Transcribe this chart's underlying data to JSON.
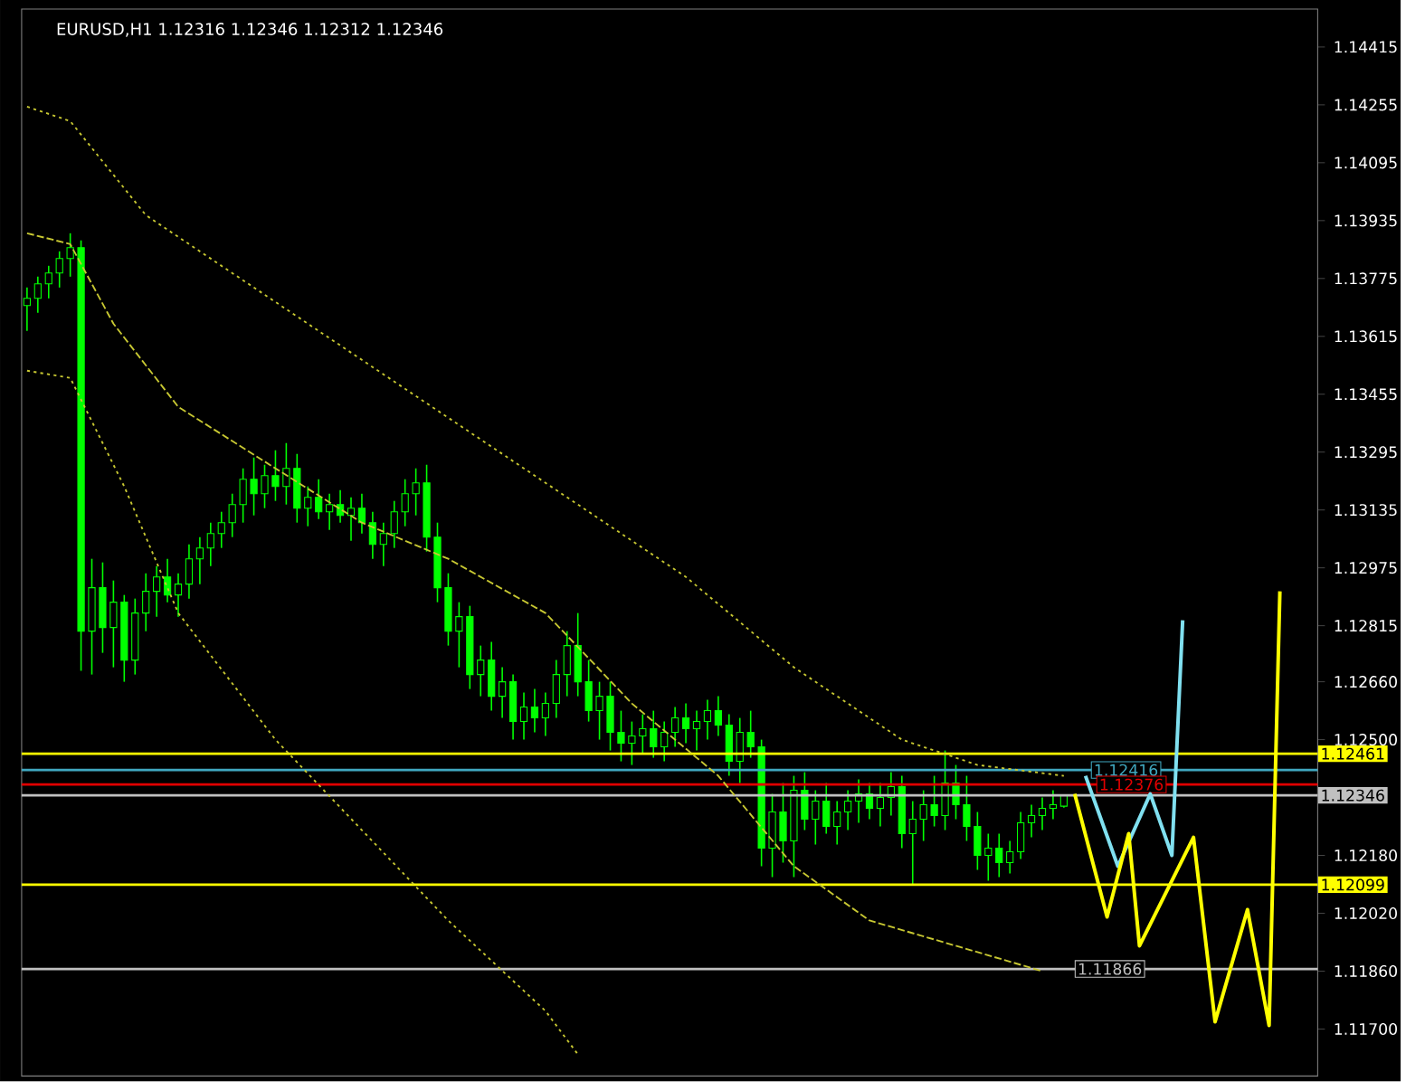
{
  "chart_data": {
    "type": "candlestick",
    "title": "EURUSD,H1 1.12316 1.12346 1.12312 1.12346",
    "categories": [
      null,
      null,
      null,
      null,
      null,
      null,
      null,
      null,
      null,
      null,
      null,
      null,
      null,
      null,
      null,
      null,
      null,
      null,
      null,
      null,
      null,
      null,
      null,
      null,
      null,
      null,
      null,
      null,
      null,
      null,
      null,
      null,
      null,
      null,
      null,
      null,
      null,
      null,
      null,
      null,
      null,
      null,
      null,
      null,
      null,
      null,
      null,
      null,
      null,
      null,
      null,
      null,
      null,
      null,
      null,
      null,
      null,
      null,
      null,
      null,
      null,
      null,
      null,
      null,
      null,
      null,
      null,
      null,
      null,
      null,
      null,
      null,
      null,
      null,
      null,
      null,
      null,
      null,
      null,
      null,
      null,
      null,
      null,
      null,
      null,
      null,
      null,
      null,
      null,
      null,
      null,
      null,
      null,
      null,
      null,
      null,
      null,
      null,
      null,
      null,
      null,
      null,
      null,
      null,
      null,
      null,
      null,
      null,
      null,
      null,
      null,
      null,
      null,
      null,
      null,
      null,
      null,
      null,
      null,
      null
    ],
    "ohlc": [
      [
        1.137,
        1.1375,
        1.1363,
        1.1372
      ],
      [
        1.1372,
        1.1378,
        1.1368,
        1.1376
      ],
      [
        1.1376,
        1.1381,
        1.1372,
        1.1379
      ],
      [
        1.1379,
        1.1385,
        1.1375,
        1.1383
      ],
      [
        1.1383,
        1.139,
        1.1378,
        1.1386
      ],
      [
        1.1386,
        1.1388,
        1.1269,
        1.128
      ],
      [
        1.128,
        1.13,
        1.1268,
        1.1292
      ],
      [
        1.1292,
        1.1299,
        1.1274,
        1.1281
      ],
      [
        1.1281,
        1.1294,
        1.127,
        1.1288
      ],
      [
        1.1288,
        1.129,
        1.1266,
        1.1272
      ],
      [
        1.1272,
        1.1289,
        1.1268,
        1.1285
      ],
      [
        1.1285,
        1.1296,
        1.128,
        1.1291
      ],
      [
        1.1291,
        1.1298,
        1.1284,
        1.1295
      ],
      [
        1.1295,
        1.13,
        1.1288,
        1.129
      ],
      [
        1.129,
        1.1296,
        1.1284,
        1.1293
      ],
      [
        1.1293,
        1.1304,
        1.1289,
        1.13
      ],
      [
        1.13,
        1.1306,
        1.1293,
        1.1303
      ],
      [
        1.1303,
        1.131,
        1.1298,
        1.1307
      ],
      [
        1.1307,
        1.1313,
        1.1303,
        1.131
      ],
      [
        1.131,
        1.1318,
        1.1306,
        1.1315
      ],
      [
        1.1315,
        1.1325,
        1.131,
        1.1322
      ],
      [
        1.1322,
        1.1328,
        1.1312,
        1.1318
      ],
      [
        1.1318,
        1.1326,
        1.1314,
        1.1323
      ],
      [
        1.1323,
        1.133,
        1.1316,
        1.132
      ],
      [
        1.132,
        1.1332,
        1.1315,
        1.1325
      ],
      [
        1.1325,
        1.1329,
        1.131,
        1.1314
      ],
      [
        1.1314,
        1.132,
        1.1309,
        1.1317
      ],
      [
        1.1317,
        1.1322,
        1.1311,
        1.1313
      ],
      [
        1.1313,
        1.1318,
        1.1308,
        1.1315
      ],
      [
        1.1315,
        1.1319,
        1.131,
        1.1312
      ],
      [
        1.1312,
        1.1317,
        1.1305,
        1.1314
      ],
      [
        1.1314,
        1.1318,
        1.1307,
        1.131
      ],
      [
        1.131,
        1.1313,
        1.13,
        1.1304
      ],
      [
        1.1304,
        1.131,
        1.1298,
        1.1307
      ],
      [
        1.1307,
        1.1316,
        1.1303,
        1.1313
      ],
      [
        1.1313,
        1.1322,
        1.1309,
        1.1318
      ],
      [
        1.1318,
        1.1325,
        1.1312,
        1.1321
      ],
      [
        1.1321,
        1.1326,
        1.1302,
        1.1306
      ],
      [
        1.1306,
        1.131,
        1.1288,
        1.1292
      ],
      [
        1.1292,
        1.1296,
        1.1276,
        1.128
      ],
      [
        1.128,
        1.1288,
        1.127,
        1.1284
      ],
      [
        1.1284,
        1.1287,
        1.1264,
        1.1268
      ],
      [
        1.1268,
        1.1276,
        1.1262,
        1.1272
      ],
      [
        1.1272,
        1.1277,
        1.1258,
        1.1262
      ],
      [
        1.1262,
        1.127,
        1.1256,
        1.1266
      ],
      [
        1.1266,
        1.1268,
        1.125,
        1.1255
      ],
      [
        1.1255,
        1.1263,
        1.125,
        1.1259
      ],
      [
        1.1259,
        1.1264,
        1.1252,
        1.1256
      ],
      [
        1.1256,
        1.1263,
        1.1251,
        1.126
      ],
      [
        1.126,
        1.1272,
        1.1256,
        1.1268
      ],
      [
        1.1268,
        1.128,
        1.1262,
        1.1276
      ],
      [
        1.1276,
        1.1285,
        1.1262,
        1.1266
      ],
      [
        1.1266,
        1.1272,
        1.1255,
        1.1258
      ],
      [
        1.1258,
        1.1266,
        1.125,
        1.1262
      ],
      [
        1.1262,
        1.1266,
        1.1247,
        1.1252
      ],
      [
        1.1252,
        1.1258,
        1.1244,
        1.1249
      ],
      [
        1.1249,
        1.1255,
        1.1243,
        1.1251
      ],
      [
        1.1251,
        1.1257,
        1.1246,
        1.1253
      ],
      [
        1.1253,
        1.1258,
        1.1245,
        1.1248
      ],
      [
        1.1248,
        1.1255,
        1.1244,
        1.1252
      ],
      [
        1.1252,
        1.1259,
        1.1248,
        1.1256
      ],
      [
        1.1256,
        1.126,
        1.1249,
        1.1253
      ],
      [
        1.1253,
        1.1258,
        1.1247,
        1.1255
      ],
      [
        1.1255,
        1.1261,
        1.125,
        1.1258
      ],
      [
        1.1258,
        1.1262,
        1.1251,
        1.1254
      ],
      [
        1.1254,
        1.1257,
        1.124,
        1.1244
      ],
      [
        1.1244,
        1.1256,
        1.1238,
        1.1252
      ],
      [
        1.1252,
        1.1258,
        1.1245,
        1.1248
      ],
      [
        1.1248,
        1.125,
        1.1215,
        1.122
      ],
      [
        1.122,
        1.1235,
        1.1212,
        1.123
      ],
      [
        1.123,
        1.1238,
        1.1216,
        1.1222
      ],
      [
        1.1222,
        1.124,
        1.1212,
        1.1236
      ],
      [
        1.1236,
        1.1241,
        1.1225,
        1.1228
      ],
      [
        1.1228,
        1.1236,
        1.1221,
        1.1233
      ],
      [
        1.1233,
        1.1238,
        1.1224,
        1.1226
      ],
      [
        1.1226,
        1.1233,
        1.1221,
        1.123
      ],
      [
        1.123,
        1.1236,
        1.1225,
        1.1233
      ],
      [
        1.1233,
        1.1239,
        1.1227,
        1.1235
      ],
      [
        1.1235,
        1.1238,
        1.1228,
        1.1231
      ],
      [
        1.1231,
        1.1238,
        1.1226,
        1.1234
      ],
      [
        1.1234,
        1.1241,
        1.1229,
        1.1237
      ],
      [
        1.1237,
        1.124,
        1.122,
        1.1224
      ],
      [
        1.1224,
        1.1233,
        1.121,
        1.1228
      ],
      [
        1.1228,
        1.1236,
        1.1222,
        1.1232
      ],
      [
        1.1232,
        1.124,
        1.1226,
        1.1229
      ],
      [
        1.1229,
        1.1247,
        1.1225,
        1.1238
      ],
      [
        1.1238,
        1.1243,
        1.1228,
        1.1232
      ],
      [
        1.1232,
        1.124,
        1.1222,
        1.1226
      ],
      [
        1.1226,
        1.123,
        1.1214,
        1.1218
      ],
      [
        1.1218,
        1.1224,
        1.1211,
        1.122
      ],
      [
        1.122,
        1.1224,
        1.1212,
        1.1216
      ],
      [
        1.1216,
        1.1222,
        1.1213,
        1.1219
      ],
      [
        1.1219,
        1.123,
        1.1217,
        1.1227
      ],
      [
        1.1227,
        1.1232,
        1.1223,
        1.1229
      ],
      [
        1.1229,
        1.1234,
        1.1225,
        1.1231
      ],
      [
        1.1231,
        1.1236,
        1.1228,
        1.1232
      ],
      [
        1.12316,
        1.12346,
        1.12312,
        1.12346
      ],
      null,
      null,
      null,
      null,
      null,
      null,
      null,
      null,
      null,
      null,
      null,
      null,
      null,
      null,
      null,
      null,
      null,
      null,
      null,
      null,
      null,
      null,
      null
    ],
    "color": "#00ff00",
    "series": [
      {
        "type": "line",
        "line_style": "dotted",
        "color": "#c8c832",
        "values": [
          1.1425,
          null,
          null,
          null,
          1.1421,
          null,
          null,
          null,
          null,
          null,
          null,
          1.1395,
          null,
          null,
          null,
          null,
          null,
          null,
          null,
          null,
          null,
          1.1375,
          null,
          null,
          null,
          null,
          null,
          null,
          null,
          null,
          null,
          1.1355,
          null,
          null,
          null,
          null,
          null,
          null,
          null,
          null,
          null,
          1.1335,
          null,
          null,
          null,
          null,
          null,
          null,
          null,
          null,
          null,
          1.1315,
          null,
          null,
          null,
          null,
          null,
          null,
          null,
          null,
          null,
          1.1295,
          null,
          null,
          null,
          null,
          null,
          null,
          null,
          null,
          null,
          1.127,
          null,
          null,
          null,
          null,
          null,
          null,
          null,
          null,
          null,
          1.125,
          null,
          null,
          null,
          null,
          null,
          null,
          1.1243,
          null,
          null,
          null,
          null,
          null,
          null,
          null,
          1.124,
          null,
          null,
          null,
          null,
          null,
          null,
          null,
          null,
          null,
          null,
          null,
          null,
          null,
          null,
          null,
          null,
          null,
          null,
          null,
          null,
          null,
          null,
          null
        ]
      },
      {
        "type": "line",
        "line_style": "dashed",
        "color": "#c8c832",
        "values": [
          1.139,
          null,
          null,
          null,
          1.1387,
          null,
          null,
          null,
          1.1365,
          null,
          null,
          null,
          null,
          null,
          1.1342,
          null,
          null,
          null,
          null,
          null,
          null,
          null,
          null,
          1.1325,
          null,
          null,
          null,
          null,
          null,
          null,
          null,
          1.131,
          null,
          null,
          null,
          null,
          null,
          null,
          null,
          1.13,
          null,
          null,
          null,
          null,
          null,
          null,
          null,
          null,
          1.1285,
          null,
          null,
          null,
          null,
          null,
          null,
          null,
          1.126,
          null,
          null,
          null,
          null,
          null,
          null,
          null,
          1.124,
          null,
          null,
          null,
          null,
          null,
          null,
          1.1215,
          null,
          null,
          null,
          null,
          null,
          null,
          1.12,
          null,
          null,
          null,
          null,
          null,
          null,
          null,
          1.1193,
          null,
          null,
          null,
          null,
          null,
          null,
          null,
          1.1186,
          null,
          null,
          null,
          null,
          null,
          null,
          null,
          null,
          null,
          null,
          null,
          null,
          null,
          null,
          null,
          null,
          null,
          null,
          null,
          null,
          null,
          null,
          null,
          null,
          null
        ]
      },
      {
        "type": "line",
        "line_style": "dotted",
        "color": "#c8c832",
        "values": [
          1.1352,
          null,
          null,
          null,
          1.135,
          null,
          null,
          null,
          null,
          1.132,
          null,
          null,
          null,
          null,
          1.1285,
          null,
          null,
          null,
          null,
          null,
          null,
          null,
          null,
          1.125,
          null,
          null,
          null,
          null,
          null,
          null,
          null,
          1.1225,
          null,
          null,
          null,
          null,
          null,
          null,
          null,
          1.12,
          null,
          null,
          null,
          null,
          null,
          null,
          null,
          null,
          1.1175,
          null,
          null,
          1.1163,
          null,
          null,
          null,
          null,
          null,
          null,
          null,
          null,
          null,
          null,
          null,
          null,
          null,
          null,
          null,
          null,
          null,
          null,
          null,
          null,
          null,
          null,
          null,
          null,
          null,
          null,
          null,
          null,
          null,
          null,
          null,
          null,
          null,
          null,
          null,
          null,
          null,
          null,
          null,
          null,
          null,
          null,
          null,
          null,
          null,
          null,
          null,
          null,
          null,
          null,
          null,
          null,
          null,
          null,
          null,
          null,
          null,
          null,
          null,
          null,
          null,
          null,
          null,
          null,
          null,
          null,
          null,
          null
        ]
      },
      {
        "type": "line",
        "line_style": "solid",
        "color": "#80e0f0",
        "values": [
          null,
          null,
          null,
          null,
          null,
          null,
          null,
          null,
          null,
          null,
          null,
          null,
          null,
          null,
          null,
          null,
          null,
          null,
          null,
          null,
          null,
          null,
          null,
          null,
          null,
          null,
          null,
          null,
          null,
          null,
          null,
          null,
          null,
          null,
          null,
          null,
          null,
          null,
          null,
          null,
          null,
          null,
          null,
          null,
          null,
          null,
          null,
          null,
          null,
          null,
          null,
          null,
          null,
          null,
          null,
          null,
          null,
          null,
          null,
          null,
          null,
          null,
          null,
          null,
          null,
          null,
          null,
          null,
          null,
          null,
          null,
          null,
          null,
          null,
          null,
          null,
          null,
          null,
          null,
          null,
          null,
          null,
          null,
          null,
          null,
          null,
          null,
          null,
          null,
          null,
          null,
          null,
          null,
          null,
          null,
          null,
          null,
          null,
          1.124,
          null,
          null,
          1.1215,
          null,
          null,
          1.1235,
          null,
          1.1218,
          1.1283,
          null,
          null,
          null,
          null,
          null,
          null,
          null,
          null,
          null,
          null,
          null,
          null
        ]
      },
      {
        "type": "line",
        "line_style": "solid",
        "color": "#ffff00",
        "values": [
          null,
          null,
          null,
          null,
          null,
          null,
          null,
          null,
          null,
          null,
          null,
          null,
          null,
          null,
          null,
          null,
          null,
          null,
          null,
          null,
          null,
          null,
          null,
          null,
          null,
          null,
          null,
          null,
          null,
          null,
          null,
          null,
          null,
          null,
          null,
          null,
          null,
          null,
          null,
          null,
          null,
          null,
          null,
          null,
          null,
          null,
          null,
          null,
          null,
          null,
          null,
          null,
          null,
          null,
          null,
          null,
          null,
          null,
          null,
          null,
          null,
          null,
          null,
          null,
          null,
          null,
          null,
          null,
          null,
          null,
          null,
          null,
          null,
          null,
          null,
          null,
          null,
          null,
          null,
          null,
          null,
          null,
          null,
          null,
          null,
          null,
          null,
          null,
          null,
          null,
          null,
          null,
          null,
          null,
          null,
          null,
          null,
          1.1235,
          null,
          null,
          1.1201,
          null,
          1.1224,
          1.1193,
          null,
          null,
          null,
          null,
          1.1223,
          null,
          1.1172,
          null,
          null,
          1.1203,
          null,
          1.1171,
          1.1291,
          null,
          null,
          null
        ]
      }
    ],
    "ref_lines": [
      {
        "axis": "y",
        "value": 1.12461,
        "label": "1.12461",
        "color": "#ffff00"
      },
      {
        "axis": "y",
        "value": 1.12346,
        "label": "1.12346",
        "color": "#c0c0c0"
      },
      {
        "axis": "y",
        "value": 1.12099,
        "label": "1.12099",
        "color": "#ffff00"
      },
      {
        "axis": "y",
        "value": 1.12416,
        "label": "1.12416",
        "color": "#40a8c0"
      },
      {
        "axis": "y",
        "value": 1.12376,
        "label": "1.12376",
        "color": "#e00000"
      },
      {
        "axis": "y",
        "value": 1.11866,
        "label": "1.11866",
        "color": "#c0c0c0"
      }
    ],
    "ylim": [
      1.1157,
      1.1452
    ],
    "yticks": [
      1.14415,
      1.14255,
      1.14095,
      1.13935,
      1.13775,
      1.13615,
      1.13455,
      1.13295,
      1.13135,
      1.12975,
      1.12815,
      {
        "value": 1.1266,
        "label": "1.12660"
      },
      {
        "value": 1.125,
        "label": "1.12500"
      },
      {
        "value": 1.1218,
        "label": "1.12180"
      },
      {
        "value": 1.1202,
        "label": "1.12020"
      },
      {
        "value": 1.1186,
        "label": "1.11860"
      },
      {
        "value": 1.117,
        "label": "1.11700"
      }
    ],
    "tick_labels": "y",
    "marker": "none"
  }
}
